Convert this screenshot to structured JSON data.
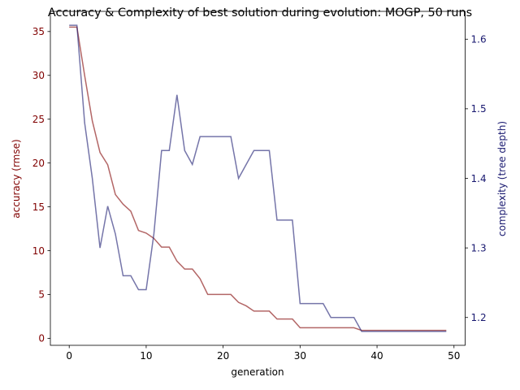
{
  "chart_data": {
    "type": "line",
    "title": "Accuracy & Complexity of best solution during evolution: MOGP, 50 runs",
    "xlabel": "generation",
    "ylabel_left": "accuracy (rmse)",
    "ylabel_right": "complexity (tree depth)",
    "xlim": [
      -2.45,
      51.45
    ],
    "ylim_left": [
      -0.8,
      37.3
    ],
    "ylim_right": [
      1.16,
      1.64
    ],
    "xticks": [
      0,
      10,
      20,
      30,
      40,
      50
    ],
    "yticks_left": [
      0,
      5,
      10,
      15,
      20,
      25,
      30,
      35
    ],
    "yticks_right": [
      1.2,
      1.3,
      1.4,
      1.5,
      1.6
    ],
    "colors": {
      "left": "#800000",
      "right": "#191970"
    },
    "x": [
      0,
      1,
      2,
      3,
      4,
      5,
      6,
      7,
      8,
      9,
      10,
      11,
      12,
      13,
      14,
      15,
      16,
      17,
      18,
      19,
      20,
      21,
      22,
      23,
      24,
      25,
      26,
      27,
      28,
      29,
      30,
      31,
      32,
      33,
      34,
      35,
      36,
      37,
      38,
      39,
      40,
      41,
      42,
      43,
      44,
      45,
      46,
      47,
      48,
      49
    ],
    "series": [
      {
        "axis": "left",
        "color": "#800000",
        "values": [
          35.5,
          35.5,
          30.0,
          24.8,
          21.2,
          19.8,
          16.4,
          15.3,
          14.5,
          12.3,
          12.0,
          11.4,
          10.4,
          10.4,
          8.8,
          7.9,
          7.9,
          6.8,
          5.0,
          5.0,
          5.0,
          5.0,
          4.1,
          3.7,
          3.1,
          3.1,
          3.1,
          2.2,
          2.2,
          2.2,
          1.2,
          1.2,
          1.2,
          1.2,
          1.2,
          1.2,
          1.2,
          1.2,
          0.9,
          0.9,
          0.9,
          0.9,
          0.9,
          0.9,
          0.9,
          0.9,
          0.9,
          0.9,
          0.9,
          0.9
        ]
      },
      {
        "axis": "right",
        "color": "#191970",
        "values": [
          1.62,
          1.62,
          1.48,
          1.4,
          1.3,
          1.36,
          1.32,
          1.26,
          1.26,
          1.24,
          1.24,
          1.32,
          1.44,
          1.44,
          1.52,
          1.44,
          1.42,
          1.46,
          1.46,
          1.46,
          1.46,
          1.46,
          1.4,
          1.42,
          1.44,
          1.44,
          1.44,
          1.34,
          1.34,
          1.34,
          1.22,
          1.22,
          1.22,
          1.22,
          1.2,
          1.2,
          1.2,
          1.2,
          1.18,
          1.18,
          1.18,
          1.18,
          1.18,
          1.18,
          1.18,
          1.18,
          1.18,
          1.18,
          1.18,
          1.18
        ]
      }
    ]
  }
}
